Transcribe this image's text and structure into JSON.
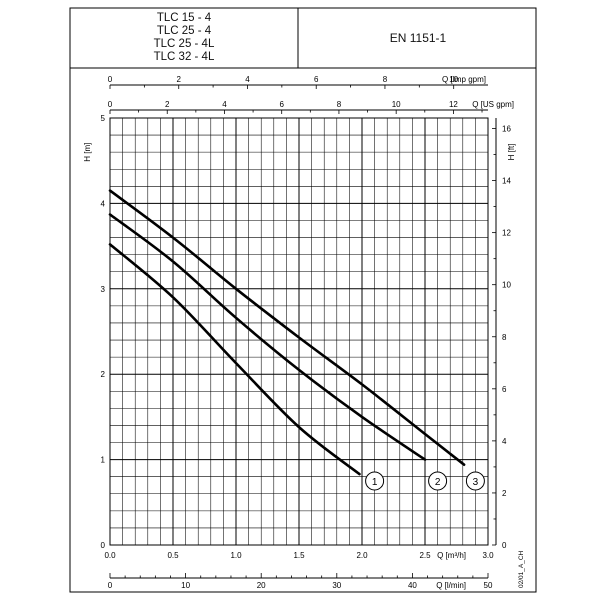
{
  "header": {
    "models": [
      "TLC 15 - 4",
      "TLC 25 - 4",
      "TLC 25 - 4L",
      "TLC 32 - 4L"
    ],
    "standard": "EN 1151-1"
  },
  "footnote": "02/01_A_CH",
  "chart_data": {
    "type": "line",
    "title": "",
    "xlabel": "Q [m³/h]",
    "ylabel": "H [m]",
    "xlim": [
      0,
      3.0
    ],
    "ylim": [
      0,
      5
    ],
    "grid": true,
    "axes": {
      "bottom": {
        "label": "Q [m³/h]",
        "ticks": [
          "0.0",
          "0.5",
          "1.0",
          "1.5",
          "2.0",
          "2.5",
          "3.0"
        ],
        "values": [
          0,
          0.5,
          1.0,
          1.5,
          2.0,
          2.5,
          3.0
        ]
      },
      "left": {
        "label": "H [m]",
        "ticks": [
          "0",
          "1",
          "2",
          "3",
          "4",
          "5"
        ],
        "values": [
          0,
          1,
          2,
          3,
          4,
          5
        ]
      },
      "right": {
        "label": "H [ft]",
        "ticks": [
          "0",
          "2",
          "4",
          "6",
          "8",
          "10",
          "12",
          "14",
          "16"
        ],
        "values": [
          0,
          2,
          4,
          6,
          8,
          10,
          12,
          14,
          16
        ],
        "ft_per_m": 3.2808
      },
      "top_imp": {
        "label": "Q [Imp gpm]",
        "ticks": [
          "0",
          "2",
          "4",
          "6",
          "8",
          "10"
        ],
        "values": [
          0,
          2,
          4,
          6,
          8,
          10
        ],
        "m3h_per_unit": 0.27277
      },
      "top_us": {
        "label": "Q [US gpm]",
        "ticks": [
          "0",
          "2",
          "4",
          "6",
          "8",
          "10",
          "12"
        ],
        "values": [
          0,
          2,
          4,
          6,
          8,
          10,
          12
        ],
        "m3h_per_unit": 0.22712
      },
      "lmin": {
        "label": "Q [l/min]",
        "ticks": [
          "0",
          "10",
          "20",
          "30",
          "40",
          "50"
        ],
        "values": [
          0,
          10,
          20,
          30,
          40,
          50
        ],
        "m3h_per_unit": 0.06
      }
    },
    "series": [
      {
        "label": "1",
        "points": [
          [
            0,
            3.52
          ],
          [
            0.5,
            2.9
          ],
          [
            1.0,
            2.13
          ],
          [
            1.5,
            1.38
          ],
          [
            1.98,
            0.83
          ]
        ]
      },
      {
        "label": "2",
        "points": [
          [
            0,
            3.87
          ],
          [
            0.5,
            3.32
          ],
          [
            1.0,
            2.66
          ],
          [
            1.5,
            2.05
          ],
          [
            2.0,
            1.5
          ],
          [
            2.5,
            1.0
          ]
        ]
      },
      {
        "label": "3",
        "points": [
          [
            0,
            4.15
          ],
          [
            0.5,
            3.6
          ],
          [
            1.0,
            3.0
          ],
          [
            1.5,
            2.43
          ],
          [
            2.0,
            1.88
          ],
          [
            2.5,
            1.3
          ],
          [
            2.81,
            0.94
          ]
        ]
      }
    ],
    "markers": [
      {
        "label": "1",
        "x": 2.1,
        "y": 0.75
      },
      {
        "label": "2",
        "x": 2.6,
        "y": 0.75
      },
      {
        "label": "3",
        "x": 2.9,
        "y": 0.75
      }
    ]
  }
}
